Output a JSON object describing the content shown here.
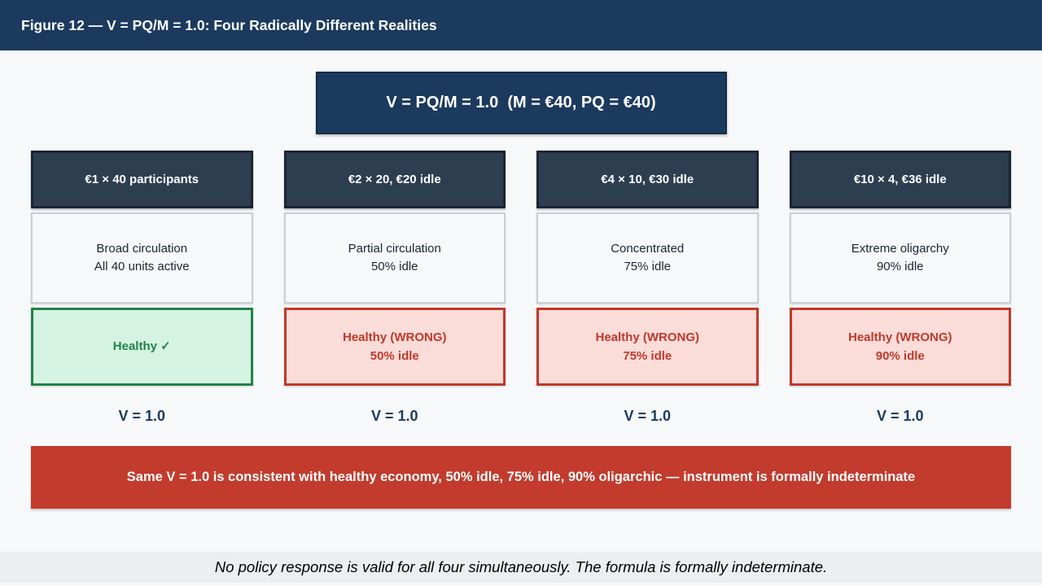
{
  "colors": {
    "navy": "#1c3a5e",
    "slate_header": "#2d3e50",
    "red": "#c23b2d",
    "red_text": "#c0392b",
    "pink_bg": "#fadcd9",
    "green_text": "#1e8449",
    "green_bg": "#d5f3e2",
    "page_bg": "#f7f8fa",
    "footer_bg": "#eceef0"
  },
  "header": {
    "title": "Figure 12 — V = PQ/M = 1.0: Four Radically Different Realities"
  },
  "formula_box": {
    "text": "V = PQ/M = 1.0  (M = €40, PQ = €40)"
  },
  "columns": [
    {
      "header": "€1 × 40 participants",
      "desc_line1": "Broad circulation",
      "desc_line2": "All 40 units active",
      "status_line1": "Healthy ✓",
      "status_line2": "",
      "status_type": "healthy",
      "velocity": "V = 1.0"
    },
    {
      "header": "€2 × 20, €20 idle",
      "desc_line1": "Partial circulation",
      "desc_line2": "50% idle",
      "status_line1": "Healthy (WRONG)",
      "status_line2": "50% idle",
      "status_type": "wrong",
      "velocity": "V = 1.0"
    },
    {
      "header": "€4 × 10, €30 idle",
      "desc_line1": "Concentrated",
      "desc_line2": "75% idle",
      "status_line1": "Healthy (WRONG)",
      "status_line2": "75% idle",
      "status_type": "wrong",
      "velocity": "V = 1.0"
    },
    {
      "header": "€10 × 4, €36 idle",
      "desc_line1": "Extreme oligarchy",
      "desc_line2": "90% idle",
      "status_line1": "Healthy (WRONG)",
      "status_line2": "90% idle",
      "status_type": "wrong",
      "velocity": "V = 1.0"
    }
  ],
  "conclusion": {
    "text": "Same V = 1.0 is consistent with healthy economy, 50% idle, 75% idle, 90% oligarchic — instrument is formally indeterminate"
  },
  "footer": {
    "note": "No policy response is valid for all four simultaneously. The formula is formally indeterminate."
  }
}
